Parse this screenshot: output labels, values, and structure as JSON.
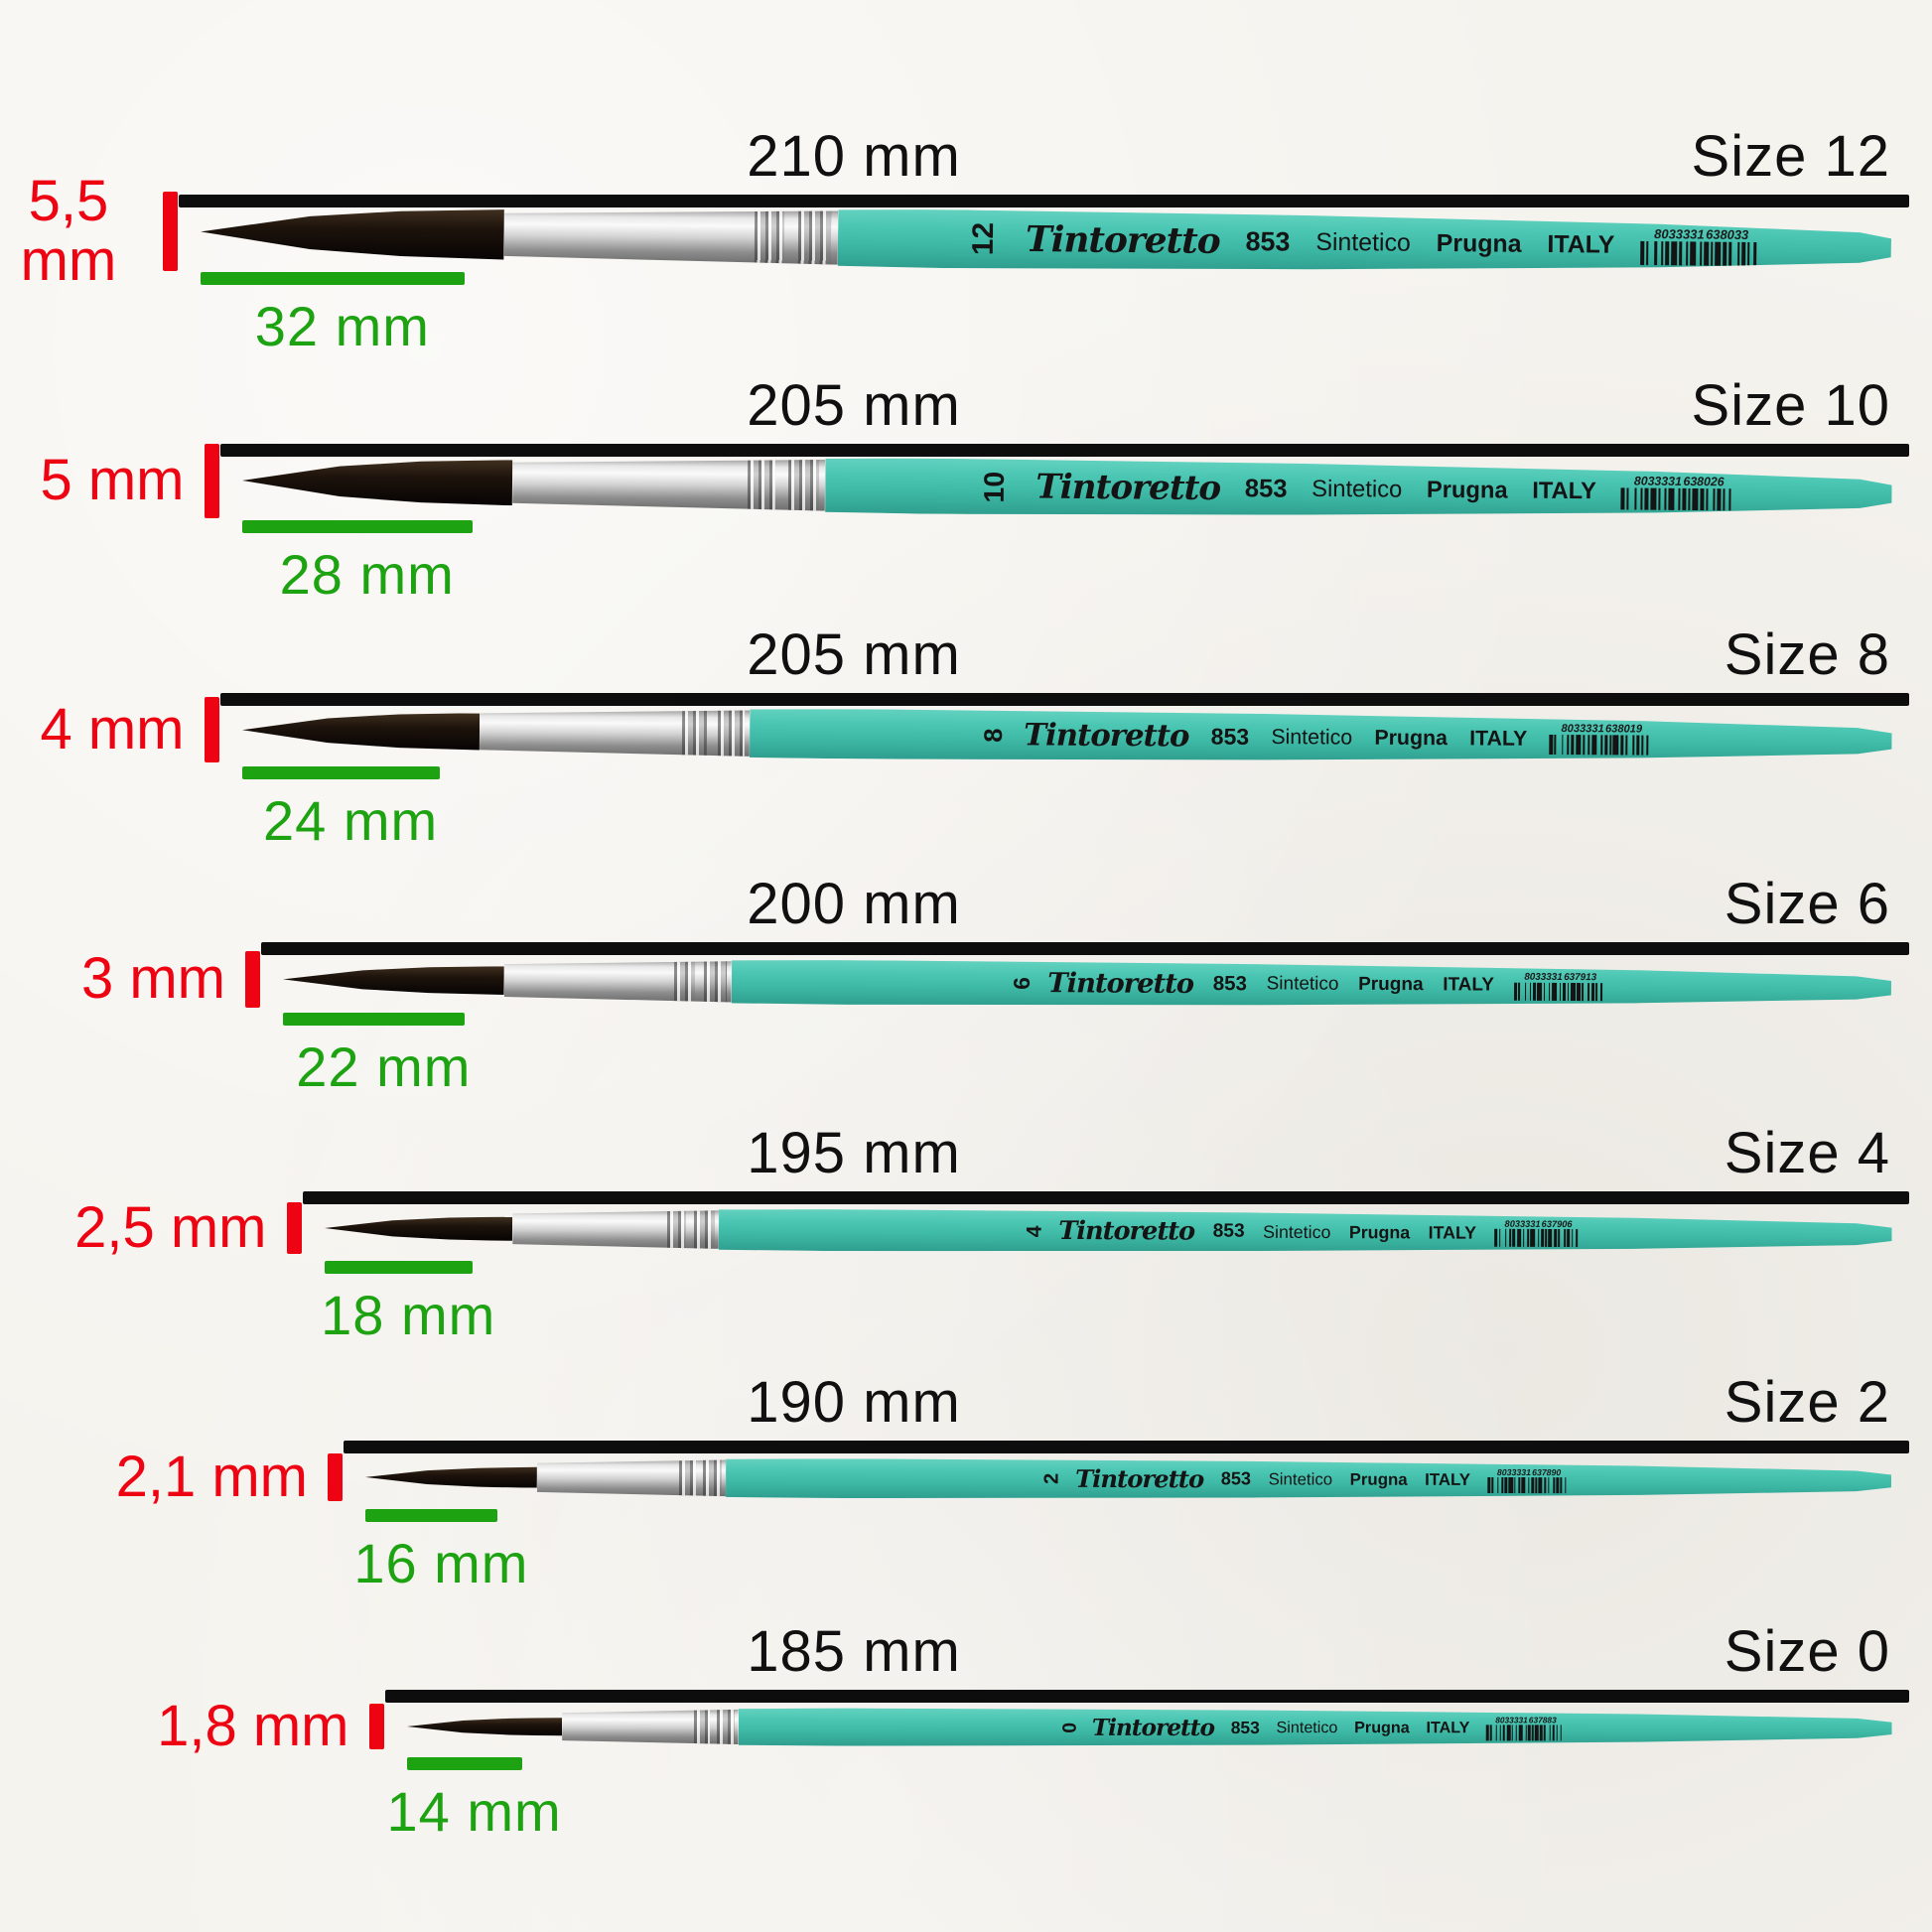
{
  "page": {
    "background_color": "#f5f3ee",
    "measure_line_color": "#0d0d0d",
    "tip_width_color": "#ee0312",
    "bristle_length_color": "#1da211",
    "handle_color": "#42c1ae",
    "ferrule_color": "#cfcfcf"
  },
  "brushes": [
    {
      "size_label": "Size 12",
      "size_number": "12",
      "total_length_label": "210 mm",
      "total_mm": 210,
      "tip_width_label": "5,5 mm",
      "tip_mm": 5.5,
      "bristle_length_label": "32 mm",
      "bristle_mm": 32,
      "brand": "Tintoretto",
      "model": "853",
      "material": "Sintetico",
      "series": "Prugna",
      "origin": "ITALY",
      "barcode_left": "8033331",
      "barcode_right": "638033"
    },
    {
      "size_label": "Size 10",
      "size_number": "10",
      "total_length_label": "205 mm",
      "total_mm": 205,
      "tip_width_label": "5 mm",
      "tip_mm": 5,
      "bristle_length_label": "28 mm",
      "bristle_mm": 28,
      "brand": "Tintoretto",
      "model": "853",
      "material": "Sintetico",
      "series": "Prugna",
      "origin": "ITALY",
      "barcode_left": "8033331",
      "barcode_right": "638026"
    },
    {
      "size_label": "Size 8",
      "size_number": "8",
      "total_length_label": "205 mm",
      "total_mm": 205,
      "tip_width_label": "4 mm",
      "tip_mm": 4,
      "bristle_length_label": "24 mm",
      "bristle_mm": 24,
      "brand": "Tintoretto",
      "model": "853",
      "material": "Sintetico",
      "series": "Prugna",
      "origin": "ITALY",
      "barcode_left": "8033331",
      "barcode_right": "638019"
    },
    {
      "size_label": "Size 6",
      "size_number": "6",
      "total_length_label": "200 mm",
      "total_mm": 200,
      "tip_width_label": "3 mm",
      "tip_mm": 3,
      "bristle_length_label": "22 mm",
      "bristle_mm": 22,
      "brand": "Tintoretto",
      "model": "853",
      "material": "Sintetico",
      "series": "Prugna",
      "origin": "ITALY",
      "barcode_left": "8033331",
      "barcode_right": "637913"
    },
    {
      "size_label": "Size 4",
      "size_number": "4",
      "total_length_label": "195 mm",
      "total_mm": 195,
      "tip_width_label": "2,5 mm",
      "tip_mm": 2.5,
      "bristle_length_label": "18 mm",
      "bristle_mm": 18,
      "brand": "Tintoretto",
      "model": "853",
      "material": "Sintetico",
      "series": "Prugna",
      "origin": "ITALY",
      "barcode_left": "8033331",
      "barcode_right": "637906"
    },
    {
      "size_label": "Size 2",
      "size_number": "2",
      "total_length_label": "190 mm",
      "total_mm": 190,
      "tip_width_label": "2,1 mm",
      "tip_mm": 2.1,
      "bristle_length_label": "16 mm",
      "bristle_mm": 16,
      "brand": "Tintoretto",
      "model": "853",
      "material": "Sintetico",
      "series": "Prugna",
      "origin": "ITALY",
      "barcode_left": "8033331",
      "barcode_right": "637890"
    },
    {
      "size_label": "Size 0",
      "size_number": "0",
      "total_length_label": "185 mm",
      "total_mm": 185,
      "tip_width_label": "1,8 mm",
      "tip_mm": 1.8,
      "bristle_length_label": "14 mm",
      "bristle_mm": 14,
      "brand": "Tintoretto",
      "model": "853",
      "material": "Sintetico",
      "series": "Prugna",
      "origin": "ITALY",
      "barcode_left": "8033331",
      "barcode_right": "637883"
    }
  ]
}
